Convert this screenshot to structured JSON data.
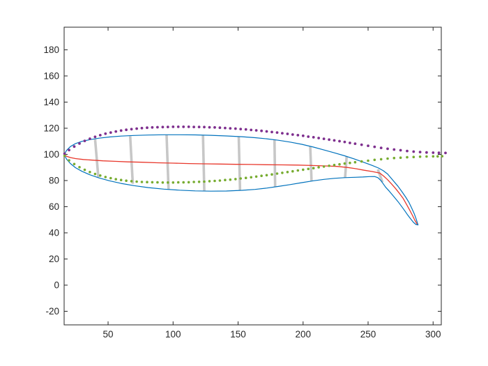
{
  "figure": {
    "background": "#ffffff"
  },
  "chart_data": {
    "type": "line",
    "title": "",
    "xlabel": "",
    "ylabel": "",
    "xlim": [
      16.2,
      306.3
    ],
    "ylim": [
      -30.4,
      197.3
    ],
    "xticks": [
      50,
      100,
      150,
      200,
      250,
      300
    ],
    "yticks": [
      -20,
      0,
      20,
      40,
      60,
      80,
      100,
      120,
      140,
      160,
      180
    ],
    "grid": "off",
    "box": "on",
    "legend": "none",
    "axis_color": "#262626",
    "tick_label_color": "#262626",
    "series": [
      {
        "name": "rib-segments",
        "type": "segments",
        "color": "#c7c7c7",
        "width": 3.6,
        "segments": [
          [
            40,
            111.6,
            42.5,
            82.5
          ],
          [
            67,
            113.9,
            69,
            77.5
          ],
          [
            95,
            114.9,
            96.5,
            73.3
          ],
          [
            123,
            114.8,
            124,
            72.0
          ],
          [
            150.5,
            113.6,
            151.5,
            72.4
          ],
          [
            178,
            111.4,
            178.5,
            75.2
          ],
          [
            205.5,
            106.0,
            206.5,
            79.6
          ],
          [
            233.5,
            98.4,
            232.3,
            82.2
          ],
          [
            257.5,
            88.5,
            261,
            78.8
          ]
        ]
      },
      {
        "name": "body-outline-top",
        "type": "line",
        "color": "#0072BD",
        "width": 1.2,
        "points": [
          [
            16.3,
            99.8
          ],
          [
            18,
            103.0
          ],
          [
            21,
            106.0
          ],
          [
            25,
            108.3
          ],
          [
            30,
            110.0
          ],
          [
            36,
            111.3
          ],
          [
            43,
            112.4
          ],
          [
            51,
            113.3
          ],
          [
            60,
            114.0
          ],
          [
            70,
            114.5
          ],
          [
            81,
            114.8
          ],
          [
            93,
            115.0
          ],
          [
            105,
            115.0
          ],
          [
            117,
            114.9
          ],
          [
            129,
            114.6
          ],
          [
            141,
            114.1
          ],
          [
            153,
            113.5
          ],
          [
            163,
            112.8
          ],
          [
            172,
            111.9
          ],
          [
            181,
            110.8
          ],
          [
            190,
            109.4
          ],
          [
            199,
            107.7
          ],
          [
            208,
            105.6
          ],
          [
            216,
            103.4
          ],
          [
            224,
            101.2
          ],
          [
            232,
            98.9
          ],
          [
            240,
            96.3
          ],
          [
            247,
            93.8
          ],
          [
            253,
            91.6
          ],
          [
            258,
            89.6
          ],
          [
            261.7,
            87.5
          ],
          [
            265,
            85.0
          ],
          [
            269.7,
            79.5
          ],
          [
            273,
            75.6
          ],
          [
            276,
            71.5
          ],
          [
            279,
            67.2
          ],
          [
            281.3,
            63.5
          ],
          [
            283.5,
            59.0
          ],
          [
            285.5,
            54.6
          ],
          [
            287,
            50.5
          ],
          [
            288.4,
            46.2
          ]
        ]
      },
      {
        "name": "body-outline-bottom",
        "type": "line",
        "color": "#0072BD",
        "width": 1.2,
        "points": [
          [
            16.3,
            99.8
          ],
          [
            18,
            96.4
          ],
          [
            21,
            93.0
          ],
          [
            25,
            89.8
          ],
          [
            30,
            87.0
          ],
          [
            36,
            84.4
          ],
          [
            43,
            82.0
          ],
          [
            51,
            79.8
          ],
          [
            60,
            77.8
          ],
          [
            70,
            76.1
          ],
          [
            81,
            74.6
          ],
          [
            93,
            73.4
          ],
          [
            105,
            72.6
          ],
          [
            117,
            72.1
          ],
          [
            129,
            71.9
          ],
          [
            141,
            72.0
          ],
          [
            153,
            72.5
          ],
          [
            163,
            73.2
          ],
          [
            172,
            74.2
          ],
          [
            181,
            75.5
          ],
          [
            190,
            76.9
          ],
          [
            199,
            78.4
          ],
          [
            208,
            79.8
          ],
          [
            216,
            80.9
          ],
          [
            224,
            81.7
          ],
          [
            232,
            82.2
          ],
          [
            240,
            82.5
          ],
          [
            246,
            82.7
          ],
          [
            251,
            83.0
          ],
          [
            255,
            83.1
          ],
          [
            257.5,
            82.2
          ],
          [
            260,
            79.8
          ],
          [
            263.4,
            75.0
          ],
          [
            266.5,
            71.6
          ],
          [
            269.7,
            67.9
          ],
          [
            273,
            63.9
          ],
          [
            276,
            59.9
          ],
          [
            278.5,
            56.4
          ],
          [
            280.4,
            53.7
          ],
          [
            282.5,
            51.0
          ],
          [
            284.9,
            48.0
          ],
          [
            286.8,
            46.4
          ],
          [
            288.4,
            46.0
          ]
        ]
      },
      {
        "name": "midline",
        "type": "line",
        "color": "#e8372b",
        "width": 1.3,
        "points": [
          [
            16.3,
            99.8
          ],
          [
            18,
            98.6
          ],
          [
            21,
            97.6
          ],
          [
            25,
            96.8
          ],
          [
            31,
            96.1
          ],
          [
            38,
            95.6
          ],
          [
            46,
            95.1
          ],
          [
            55,
            94.7
          ],
          [
            65,
            94.3
          ],
          [
            76,
            94.0
          ],
          [
            88,
            93.6
          ],
          [
            100,
            93.3
          ],
          [
            112,
            93.0
          ],
          [
            124,
            92.8
          ],
          [
            136,
            92.6
          ],
          [
            148,
            92.4
          ],
          [
            160,
            92.3
          ],
          [
            172,
            92.1
          ],
          [
            184,
            92.0
          ],
          [
            196,
            91.8
          ],
          [
            207,
            91.5
          ],
          [
            217,
            91.2
          ],
          [
            226,
            90.8
          ],
          [
            234,
            90.0
          ],
          [
            241,
            89.0
          ],
          [
            247,
            87.9
          ],
          [
            253,
            86.9
          ],
          [
            259,
            85.7
          ],
          [
            262,
            83.4
          ],
          [
            265,
            80.6
          ],
          [
            268,
            77.4
          ],
          [
            271,
            74.0
          ],
          [
            274,
            70.3
          ],
          [
            277,
            66.2
          ],
          [
            279.5,
            61.9
          ],
          [
            282,
            57.4
          ],
          [
            284,
            53.6
          ],
          [
            286,
            49.6
          ],
          [
            287.6,
            46.8
          ]
        ]
      },
      {
        "name": "dorsal-edge-dots",
        "type": "dots",
        "color": "#7E2F8E",
        "dot_radius": 1.9,
        "points": [
          [
            16.5,
            100.5
          ],
          [
            20,
            103.3
          ],
          [
            24,
            106.0
          ],
          [
            28,
            108.3
          ],
          [
            32,
            110.3
          ],
          [
            36,
            112.0
          ],
          [
            40,
            113.4
          ],
          [
            44,
            114.7
          ],
          [
            48,
            115.8
          ],
          [
            52,
            116.7
          ],
          [
            56,
            117.5
          ],
          [
            60,
            118.2
          ],
          [
            64,
            118.8
          ],
          [
            68,
            119.3
          ],
          [
            72,
            119.7
          ],
          [
            76,
            120.1
          ],
          [
            80,
            120.4
          ],
          [
            84,
            120.6
          ],
          [
            88,
            120.8
          ],
          [
            92,
            120.9
          ],
          [
            96,
            121.0
          ],
          [
            100,
            121.1
          ],
          [
            104,
            121.1
          ],
          [
            108,
            121.1
          ],
          [
            112,
            121.1
          ],
          [
            116,
            121.0
          ],
          [
            120,
            121.0
          ],
          [
            124,
            120.9
          ],
          [
            128,
            120.7
          ],
          [
            132,
            120.6
          ],
          [
            136,
            120.4
          ],
          [
            140,
            120.2
          ],
          [
            144,
            119.9
          ],
          [
            148,
            119.7
          ],
          [
            152,
            119.4
          ],
          [
            156,
            119.1
          ],
          [
            160,
            118.7
          ],
          [
            164,
            118.4
          ],
          [
            168,
            118.0
          ],
          [
            172,
            117.6
          ],
          [
            176,
            117.1
          ],
          [
            180,
            116.7
          ],
          [
            184,
            116.2
          ],
          [
            188,
            115.7
          ],
          [
            192,
            115.2
          ],
          [
            196,
            114.7
          ],
          [
            200,
            114.2
          ],
          [
            204,
            113.6
          ],
          [
            208,
            113.1
          ],
          [
            212,
            112.5
          ],
          [
            216,
            111.9
          ],
          [
            220,
            111.3
          ],
          [
            224,
            110.7
          ],
          [
            228,
            110.1
          ],
          [
            232,
            109.5
          ],
          [
            236,
            108.8
          ],
          [
            240,
            108.2
          ],
          [
            245,
            107.4
          ],
          [
            250,
            106.6
          ],
          [
            255,
            105.8
          ],
          [
            260,
            105.0
          ],
          [
            265,
            104.3
          ],
          [
            270,
            103.7
          ],
          [
            275,
            103.2
          ],
          [
            280,
            102.6
          ],
          [
            285,
            102.1
          ],
          [
            290,
            101.8
          ],
          [
            295,
            101.5
          ],
          [
            300,
            101.3
          ],
          [
            304.5,
            101.2
          ],
          [
            309.5,
            101.1
          ]
        ]
      },
      {
        "name": "ventral-edge-dots",
        "type": "dots",
        "color": "#77AC30",
        "dot_radius": 1.8,
        "points": [
          [
            16.5,
            98.9
          ],
          [
            20,
            95.4
          ],
          [
            24,
            92.6
          ],
          [
            28,
            90.2
          ],
          [
            32,
            88.2
          ],
          [
            36,
            86.5
          ],
          [
            40,
            85.0
          ],
          [
            44,
            83.8
          ],
          [
            48,
            82.7
          ],
          [
            52,
            81.8
          ],
          [
            56,
            81.0
          ],
          [
            60,
            80.4
          ],
          [
            64,
            79.9
          ],
          [
            68,
            79.5
          ],
          [
            72,
            79.2
          ],
          [
            76,
            78.9
          ],
          [
            80,
            78.8
          ],
          [
            84,
            78.7
          ],
          [
            88,
            78.6
          ],
          [
            92,
            78.5
          ],
          [
            96,
            78.5
          ],
          [
            100,
            78.5
          ],
          [
            104,
            78.6
          ],
          [
            108,
            78.6
          ],
          [
            112,
            78.7
          ],
          [
            116,
            78.9
          ],
          [
            120,
            79.0
          ],
          [
            124,
            79.2
          ],
          [
            128,
            79.5
          ],
          [
            132,
            79.7
          ],
          [
            136,
            80.0
          ],
          [
            140,
            80.4
          ],
          [
            144,
            80.7
          ],
          [
            148,
            81.1
          ],
          [
            152,
            81.6
          ],
          [
            156,
            82.0
          ],
          [
            160,
            82.5
          ],
          [
            164,
            83.0
          ],
          [
            168,
            83.6
          ],
          [
            172,
            84.1
          ],
          [
            176,
            84.7
          ],
          [
            180,
            85.3
          ],
          [
            184,
            85.9
          ],
          [
            188,
            86.5
          ],
          [
            192,
            87.1
          ],
          [
            196,
            87.7
          ],
          [
            200,
            88.3
          ],
          [
            204,
            88.9
          ],
          [
            208,
            89.5
          ],
          [
            212,
            90.1
          ],
          [
            216,
            90.7
          ],
          [
            220,
            91.3
          ],
          [
            224,
            91.9
          ],
          [
            228,
            92.4
          ],
          [
            232,
            93.0
          ],
          [
            236,
            93.5
          ],
          [
            240,
            94.0
          ],
          [
            245,
            94.6
          ],
          [
            250,
            95.2
          ],
          [
            255,
            95.8
          ],
          [
            260,
            96.3
          ],
          [
            265,
            96.8
          ],
          [
            270,
            97.2
          ],
          [
            275,
            97.5
          ],
          [
            280,
            97.8
          ],
          [
            285,
            98.0
          ],
          [
            290,
            98.2
          ],
          [
            295,
            98.4
          ],
          [
            300,
            98.5
          ],
          [
            303.5,
            98.5
          ],
          [
            307,
            98.6
          ]
        ]
      }
    ]
  }
}
